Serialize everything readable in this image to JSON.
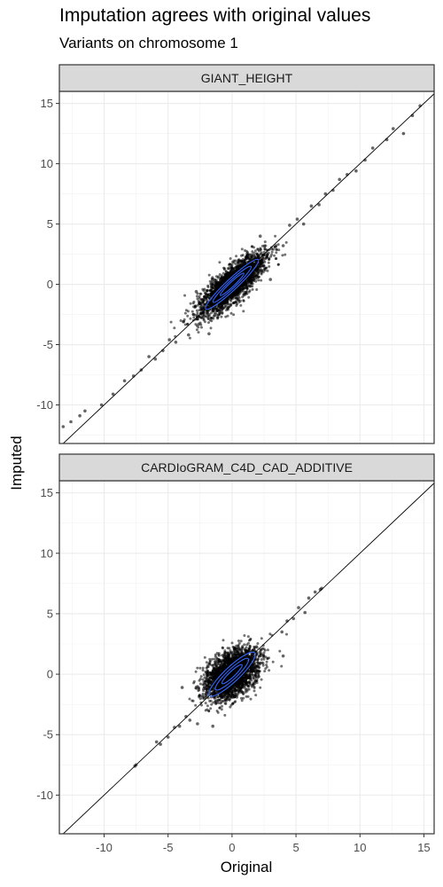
{
  "chart_data": {
    "type": "scatter",
    "title": "Imputation agrees with original values",
    "subtitle": "Variants on chromosome 1",
    "xlabel": "Original",
    "ylabel": "Imputed",
    "xlim": [
      -13.5,
      15.8
    ],
    "ylim": [
      -13.2,
      16.0
    ],
    "x_ticks": [
      -10,
      -5,
      0,
      5,
      10,
      15
    ],
    "y_ticks": [
      -10,
      -5,
      0,
      5,
      10,
      15
    ],
    "grid": true,
    "reference_line": {
      "slope": 1,
      "intercept": 0
    },
    "point_color": "#000000",
    "density_contour_color": "#3366FF",
    "panels": [
      {
        "strip_label": "GIANT_HEIGHT",
        "points": [
          [
            -13.2,
            -11.8
          ],
          [
            -12.6,
            -11.4
          ],
          [
            -11.9,
            -10.9
          ],
          [
            -11.5,
            -10.5
          ],
          [
            -10.2,
            -10.0
          ],
          [
            -9.3,
            -9.1
          ],
          [
            -8.4,
            -8.0
          ],
          [
            -7.7,
            -7.6
          ],
          [
            -7.1,
            -7.1
          ],
          [
            -6.5,
            -6.0
          ],
          [
            -6.0,
            -6.2
          ],
          [
            -5.4,
            -5.5
          ],
          [
            -4.9,
            -4.6
          ],
          [
            -4.4,
            -4.8
          ],
          [
            -3.8,
            -3.1
          ],
          [
            -3.4,
            -4.2
          ],
          [
            -3.0,
            -2.5
          ],
          [
            -2.6,
            -3.3
          ],
          [
            4.0,
            3.2
          ],
          [
            4.5,
            4.9
          ],
          [
            5.1,
            5.4
          ],
          [
            5.6,
            5.0
          ],
          [
            6.2,
            6.5
          ],
          [
            6.8,
            6.6
          ],
          [
            7.3,
            7.5
          ],
          [
            7.9,
            7.8
          ],
          [
            8.4,
            8.7
          ],
          [
            9.0,
            9.1
          ],
          [
            9.7,
            9.4
          ],
          [
            10.4,
            10.3
          ],
          [
            11.0,
            11.3
          ],
          [
            12.1,
            12.0
          ],
          [
            12.6,
            12.9
          ],
          [
            13.4,
            12.5
          ],
          [
            14.1,
            14.0
          ],
          [
            14.7,
            14.8
          ],
          [
            3.0,
            0.4
          ],
          [
            -2.8,
            -0.6
          ],
          [
            2.2,
            4.0
          ],
          [
            -1.8,
            -4.1
          ]
        ],
        "core_spread": {
          "n": 2600,
          "sd_major": 1.65,
          "sd_minor": 0.55
        },
        "ellipses": [
          {
            "sd_major": 2.9,
            "sd_minor": 0.45
          },
          {
            "sd_major": 2.1,
            "sd_minor": 0.3
          },
          {
            "sd_major": 1.3,
            "sd_minor": 0.18
          }
        ]
      },
      {
        "strip_label": "CARDIoGRAM_C4D_CAD_ADDITIVE",
        "points": [
          [
            -7.5,
            -7.5
          ],
          [
            -7.6,
            -7.6
          ],
          [
            -5.9,
            -5.6
          ],
          [
            -5.6,
            -5.8
          ],
          [
            -5.0,
            -5.2
          ],
          [
            -4.5,
            -4.4
          ],
          [
            -4.1,
            -4.3
          ],
          [
            -3.6,
            -3.5
          ],
          [
            -3.3,
            -3.8
          ],
          [
            -2.7,
            -4.1
          ],
          [
            -1.5,
            -4.3
          ],
          [
            3.9,
            3.5
          ],
          [
            4.3,
            4.4
          ],
          [
            4.8,
            4.6
          ],
          [
            5.2,
            5.5
          ],
          [
            5.7,
            5.1
          ],
          [
            6.0,
            6.3
          ],
          [
            6.5,
            6.8
          ],
          [
            6.9,
            7.0
          ],
          [
            7.0,
            7.1
          ],
          [
            4.0,
            1.5
          ],
          [
            -3.9,
            -1.1
          ]
        ],
        "core_spread": {
          "n": 2600,
          "sd_major": 1.25,
          "sd_minor": 0.75
        },
        "ellipses": [
          {
            "sd_major": 2.5,
            "sd_minor": 0.6
          },
          {
            "sd_major": 1.8,
            "sd_minor": 0.4
          },
          {
            "sd_major": 1.1,
            "sd_minor": 0.22
          }
        ]
      }
    ]
  }
}
